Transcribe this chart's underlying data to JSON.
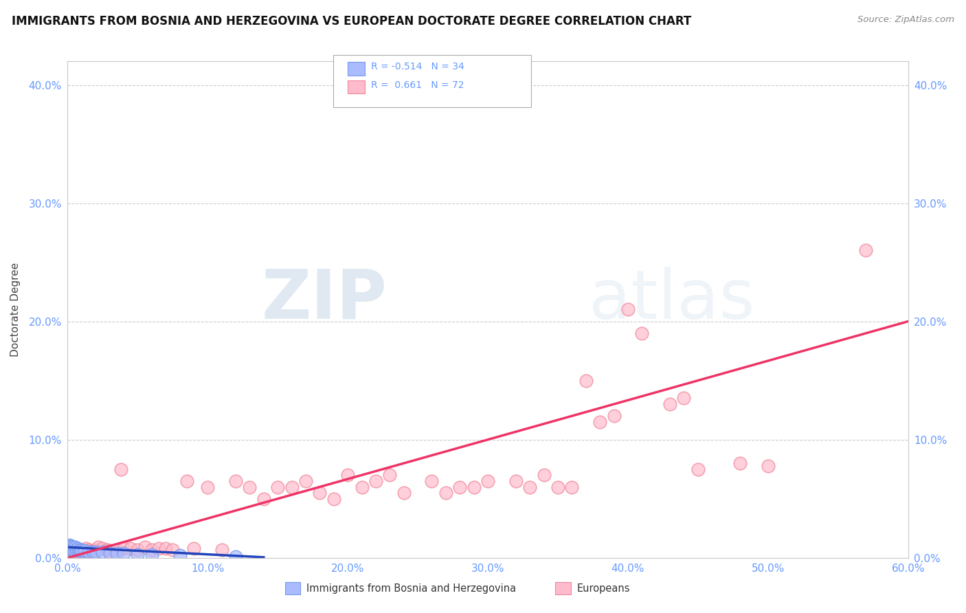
{
  "title": "IMMIGRANTS FROM BOSNIA AND HERZEGOVINA VS EUROPEAN DOCTORATE DEGREE CORRELATION CHART",
  "source": "Source: ZipAtlas.com",
  "ylabel": "Doctorate Degree",
  "xlim": [
    0.0,
    0.6
  ],
  "ylim": [
    0.0,
    0.42
  ],
  "xticks": [
    0.0,
    0.1,
    0.2,
    0.3,
    0.4,
    0.5,
    0.6
  ],
  "yticks": [
    0.0,
    0.1,
    0.2,
    0.3,
    0.4
  ],
  "xtick_labels": [
    "0.0%",
    "10.0%",
    "20.0%",
    "30.0%",
    "40.0%",
    "50.0%",
    "60.0%"
  ],
  "ytick_labels": [
    "0.0%",
    "10.0%",
    "20.0%",
    "30.0%",
    "40.0%"
  ],
  "watermark_zip": "ZIP",
  "watermark_atlas": "atlas",
  "background_color": "#ffffff",
  "grid_color": "#cccccc",
  "bosnia_color": "#aabbff",
  "bosnia_edge_color": "#7799ee",
  "european_color": "#ffbbcc",
  "european_edge_color": "#ee8899",
  "bosnia_trend_color": "#2244bb",
  "european_trend_color": "#ee3366",
  "tick_color": "#6699ff",
  "legend_bottom_label1": "Immigrants from Bosnia and Herzegovina",
  "legend_bottom_label2": "Europeans",
  "bosnia_R": "R = -0.514",
  "bosnia_N": "N = 34",
  "european_R": "R =  0.661",
  "european_N": "N = 72",
  "eu_scatter_x": [
    0.001,
    0.002,
    0.002,
    0.003,
    0.003,
    0.004,
    0.005,
    0.005,
    0.006,
    0.007,
    0.008,
    0.009,
    0.01,
    0.011,
    0.012,
    0.013,
    0.015,
    0.016,
    0.018,
    0.02,
    0.022,
    0.025,
    0.028,
    0.03,
    0.035,
    0.038,
    0.04,
    0.045,
    0.05,
    0.055,
    0.06,
    0.065,
    0.07,
    0.075,
    0.085,
    0.09,
    0.1,
    0.11,
    0.12,
    0.13,
    0.14,
    0.15,
    0.16,
    0.17,
    0.18,
    0.19,
    0.2,
    0.21,
    0.22,
    0.23,
    0.24,
    0.26,
    0.27,
    0.28,
    0.29,
    0.3,
    0.32,
    0.33,
    0.34,
    0.35,
    0.36,
    0.37,
    0.38,
    0.39,
    0.4,
    0.41,
    0.43,
    0.44,
    0.45,
    0.48,
    0.5,
    0.57
  ],
  "eu_scatter_y": [
    0.004,
    0.005,
    0.007,
    0.004,
    0.006,
    0.005,
    0.006,
    0.008,
    0.006,
    0.005,
    0.007,
    0.006,
    0.005,
    0.004,
    0.006,
    0.008,
    0.007,
    0.005,
    0.006,
    0.007,
    0.009,
    0.008,
    0.007,
    0.006,
    0.007,
    0.075,
    0.008,
    0.008,
    0.007,
    0.009,
    0.007,
    0.008,
    0.008,
    0.007,
    0.065,
    0.008,
    0.06,
    0.007,
    0.065,
    0.06,
    0.05,
    0.06,
    0.06,
    0.065,
    0.055,
    0.05,
    0.07,
    0.06,
    0.065,
    0.07,
    0.055,
    0.065,
    0.055,
    0.06,
    0.06,
    0.065,
    0.065,
    0.06,
    0.07,
    0.06,
    0.06,
    0.15,
    0.115,
    0.12,
    0.21,
    0.19,
    0.13,
    0.135,
    0.075,
    0.08,
    0.078,
    0.26
  ],
  "bos_scatter_x": [
    0.0003,
    0.0005,
    0.0007,
    0.0009,
    0.001,
    0.0012,
    0.0015,
    0.0017,
    0.002,
    0.0022,
    0.0025,
    0.003,
    0.0033,
    0.0035,
    0.004,
    0.0045,
    0.005,
    0.006,
    0.007,
    0.008,
    0.009,
    0.01,
    0.012,
    0.015,
    0.018,
    0.02,
    0.025,
    0.03,
    0.035,
    0.04,
    0.05,
    0.06,
    0.08,
    0.12
  ],
  "bos_scatter_y": [
    0.006,
    0.008,
    0.01,
    0.009,
    0.007,
    0.011,
    0.008,
    0.009,
    0.01,
    0.007,
    0.009,
    0.008,
    0.01,
    0.007,
    0.008,
    0.006,
    0.009,
    0.007,
    0.008,
    0.006,
    0.007,
    0.006,
    0.006,
    0.005,
    0.005,
    0.005,
    0.005,
    0.004,
    0.004,
    0.004,
    0.003,
    0.003,
    0.002,
    0.001
  ],
  "bos_trend_x": [
    0.0,
    0.14
  ],
  "bos_trend_y": [
    0.009,
    0.0005
  ],
  "eu_trend_x": [
    0.0,
    0.6
  ],
  "eu_trend_y": [
    0.0,
    0.2
  ]
}
